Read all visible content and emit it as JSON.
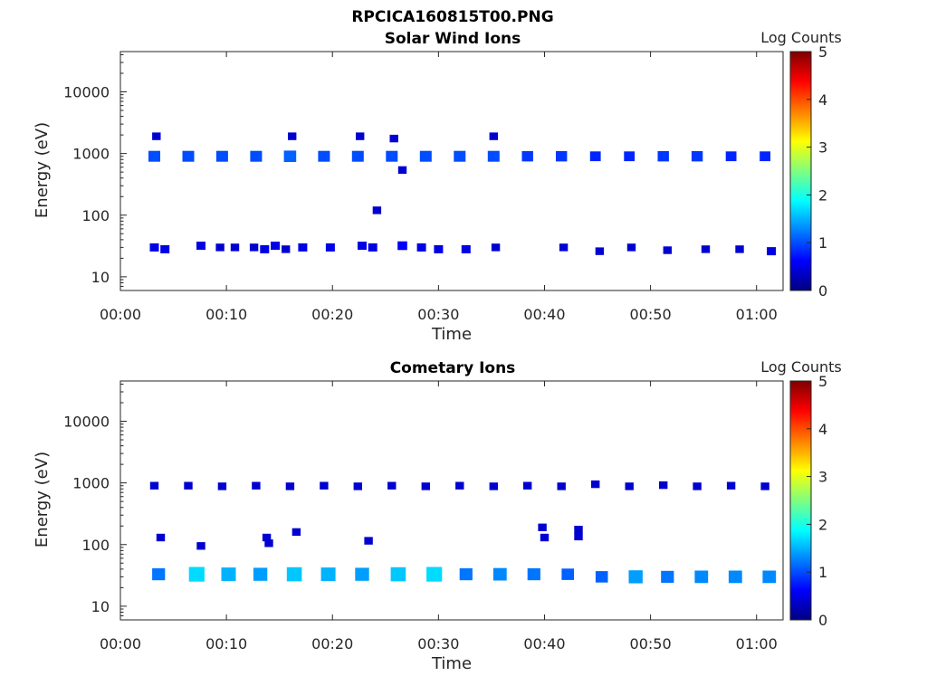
{
  "figure_title": "RPCICA160815T00.PNG",
  "colors": {
    "colormap": [
      "#00007f",
      "#0000ff",
      "#007fff",
      "#00ffff",
      "#7fff7f",
      "#ffff00",
      "#ff7f00",
      "#ff0000",
      "#7f0000"
    ],
    "axis": "#262626"
  },
  "chart_data": [
    {
      "type": "heatmap",
      "title": "Solar Wind Ions",
      "xlabel": "Time",
      "ylabel": "Energy (eV)",
      "x_unit": "minutes",
      "x_ticks": [
        "00:00",
        "00:10",
        "00:20",
        "00:30",
        "00:40",
        "00:50",
        "01:00"
      ],
      "x_range": [
        0,
        62.5
      ],
      "y_scale": "log",
      "y_ticks": [
        "10",
        "100",
        "1000",
        "10000"
      ],
      "y_range": [
        6,
        45000
      ],
      "colorbar": {
        "label": "Log Counts",
        "ticks": [
          "0",
          "1",
          "2",
          "3",
          "4",
          "5"
        ],
        "range": [
          0,
          5
        ]
      },
      "cells": [
        {
          "t": 3.2,
          "e": 900,
          "v": 1.0
        },
        {
          "t": 6.4,
          "e": 900,
          "v": 1.0
        },
        {
          "t": 9.6,
          "e": 900,
          "v": 1.0
        },
        {
          "t": 12.8,
          "e": 900,
          "v": 1.0
        },
        {
          "t": 16.0,
          "e": 900,
          "v": 1.1
        },
        {
          "t": 19.2,
          "e": 900,
          "v": 1.0
        },
        {
          "t": 22.4,
          "e": 900,
          "v": 1.0
        },
        {
          "t": 25.6,
          "e": 900,
          "v": 1.0
        },
        {
          "t": 28.8,
          "e": 900,
          "v": 1.0
        },
        {
          "t": 32.0,
          "e": 900,
          "v": 1.0
        },
        {
          "t": 35.2,
          "e": 900,
          "v": 1.0
        },
        {
          "t": 38.4,
          "e": 900,
          "v": 0.9
        },
        {
          "t": 41.6,
          "e": 900,
          "v": 0.9
        },
        {
          "t": 44.8,
          "e": 900,
          "v": 0.8
        },
        {
          "t": 48.0,
          "e": 900,
          "v": 0.8
        },
        {
          "t": 51.2,
          "e": 900,
          "v": 0.9
        },
        {
          "t": 54.4,
          "e": 900,
          "v": 0.9
        },
        {
          "t": 57.6,
          "e": 900,
          "v": 0.8
        },
        {
          "t": 60.8,
          "e": 900,
          "v": 0.8
        },
        {
          "t": 3.4,
          "e": 1900,
          "v": 0.4
        },
        {
          "t": 16.2,
          "e": 1900,
          "v": 0.4
        },
        {
          "t": 22.6,
          "e": 1900,
          "v": 0.4
        },
        {
          "t": 25.8,
          "e": 1750,
          "v": 0.4
        },
        {
          "t": 35.2,
          "e": 1900,
          "v": 0.4
        },
        {
          "t": 26.6,
          "e": 540,
          "v": 0.4
        },
        {
          "t": 24.2,
          "e": 120,
          "v": 0.4
        },
        {
          "t": 3.2,
          "e": 30,
          "v": 0.5
        },
        {
          "t": 4.2,
          "e": 28,
          "v": 0.5
        },
        {
          "t": 7.6,
          "e": 32,
          "v": 0.5
        },
        {
          "t": 9.4,
          "e": 30,
          "v": 0.4
        },
        {
          "t": 10.8,
          "e": 30,
          "v": 0.4
        },
        {
          "t": 12.6,
          "e": 30,
          "v": 0.4
        },
        {
          "t": 13.6,
          "e": 28,
          "v": 0.5
        },
        {
          "t": 14.6,
          "e": 32,
          "v": 0.5
        },
        {
          "t": 15.6,
          "e": 28,
          "v": 0.4
        },
        {
          "t": 17.2,
          "e": 30,
          "v": 0.5
        },
        {
          "t": 19.8,
          "e": 30,
          "v": 0.5
        },
        {
          "t": 22.8,
          "e": 32,
          "v": 0.5
        },
        {
          "t": 23.8,
          "e": 30,
          "v": 0.5
        },
        {
          "t": 26.6,
          "e": 32,
          "v": 0.6
        },
        {
          "t": 28.4,
          "e": 30,
          "v": 0.5
        },
        {
          "t": 30.0,
          "e": 28,
          "v": 0.5
        },
        {
          "t": 32.6,
          "e": 28,
          "v": 0.5
        },
        {
          "t": 35.4,
          "e": 30,
          "v": 0.4
        },
        {
          "t": 41.8,
          "e": 30,
          "v": 0.4
        },
        {
          "t": 45.2,
          "e": 26,
          "v": 0.4
        },
        {
          "t": 48.2,
          "e": 30,
          "v": 0.4
        },
        {
          "t": 51.6,
          "e": 27,
          "v": 0.4
        },
        {
          "t": 55.2,
          "e": 28,
          "v": 0.4
        },
        {
          "t": 58.4,
          "e": 28,
          "v": 0.4
        },
        {
          "t": 61.4,
          "e": 26,
          "v": 0.5
        }
      ]
    },
    {
      "type": "heatmap",
      "title": "Cometary Ions",
      "xlabel": "Time",
      "ylabel": "Energy (eV)",
      "x_unit": "minutes",
      "x_ticks": [
        "00:00",
        "00:10",
        "00:20",
        "00:30",
        "00:40",
        "00:50",
        "01:00"
      ],
      "x_range": [
        0,
        62.5
      ],
      "y_scale": "log",
      "y_ticks": [
        "10",
        "100",
        "1000",
        "10000"
      ],
      "y_range": [
        6,
        45000
      ],
      "colorbar": {
        "label": "Log Counts",
        "ticks": [
          "0",
          "1",
          "2",
          "3",
          "4",
          "5"
        ],
        "range": [
          0,
          5
        ]
      },
      "cells": [
        {
          "t": 3.2,
          "e": 900,
          "v": 0.4
        },
        {
          "t": 6.4,
          "e": 900,
          "v": 0.4
        },
        {
          "t": 9.6,
          "e": 880,
          "v": 0.4
        },
        {
          "t": 12.8,
          "e": 900,
          "v": 0.4
        },
        {
          "t": 16.0,
          "e": 880,
          "v": 0.4
        },
        {
          "t": 19.2,
          "e": 900,
          "v": 0.4
        },
        {
          "t": 22.4,
          "e": 880,
          "v": 0.4
        },
        {
          "t": 25.6,
          "e": 900,
          "v": 0.4
        },
        {
          "t": 28.8,
          "e": 880,
          "v": 0.4
        },
        {
          "t": 32.0,
          "e": 900,
          "v": 0.4
        },
        {
          "t": 35.2,
          "e": 880,
          "v": 0.4
        },
        {
          "t": 38.4,
          "e": 900,
          "v": 0.4
        },
        {
          "t": 41.6,
          "e": 880,
          "v": 0.4
        },
        {
          "t": 44.8,
          "e": 950,
          "v": 0.4
        },
        {
          "t": 48.0,
          "e": 880,
          "v": 0.4
        },
        {
          "t": 51.2,
          "e": 920,
          "v": 0.4
        },
        {
          "t": 54.4,
          "e": 880,
          "v": 0.4
        },
        {
          "t": 57.6,
          "e": 900,
          "v": 0.4
        },
        {
          "t": 60.8,
          "e": 880,
          "v": 0.4
        },
        {
          "t": 3.8,
          "e": 130,
          "v": 0.4
        },
        {
          "t": 7.6,
          "e": 95,
          "v": 0.4
        },
        {
          "t": 13.8,
          "e": 130,
          "v": 0.4
        },
        {
          "t": 14.0,
          "e": 105,
          "v": 0.4
        },
        {
          "t": 16.6,
          "e": 160,
          "v": 0.4
        },
        {
          "t": 23.4,
          "e": 115,
          "v": 0.4
        },
        {
          "t": 39.8,
          "e": 190,
          "v": 0.4
        },
        {
          "t": 40.0,
          "e": 130,
          "v": 0.4
        },
        {
          "t": 43.2,
          "e": 175,
          "v": 0.4
        },
        {
          "t": 43.2,
          "e": 135,
          "v": 0.4
        },
        {
          "t": 3.6,
          "e": 33,
          "v": 1.2
        },
        {
          "t": 7.2,
          "e": 33,
          "v": 1.7
        },
        {
          "t": 10.2,
          "e": 33,
          "v": 1.5
        },
        {
          "t": 13.2,
          "e": 33,
          "v": 1.4
        },
        {
          "t": 16.4,
          "e": 33,
          "v": 1.6
        },
        {
          "t": 19.6,
          "e": 33,
          "v": 1.5
        },
        {
          "t": 22.8,
          "e": 33,
          "v": 1.4
        },
        {
          "t": 26.2,
          "e": 33,
          "v": 1.6
        },
        {
          "t": 29.6,
          "e": 33,
          "v": 1.7
        },
        {
          "t": 32.6,
          "e": 33,
          "v": 1.2
        },
        {
          "t": 35.8,
          "e": 33,
          "v": 1.3
        },
        {
          "t": 39.0,
          "e": 33,
          "v": 1.2
        },
        {
          "t": 42.2,
          "e": 33,
          "v": 1.1
        },
        {
          "t": 45.4,
          "e": 30,
          "v": 1.1
        },
        {
          "t": 48.6,
          "e": 30,
          "v": 1.4
        },
        {
          "t": 51.6,
          "e": 30,
          "v": 1.2
        },
        {
          "t": 54.8,
          "e": 30,
          "v": 1.3
        },
        {
          "t": 58.0,
          "e": 30,
          "v": 1.3
        },
        {
          "t": 61.2,
          "e": 30,
          "v": 1.3
        }
      ]
    }
  ]
}
